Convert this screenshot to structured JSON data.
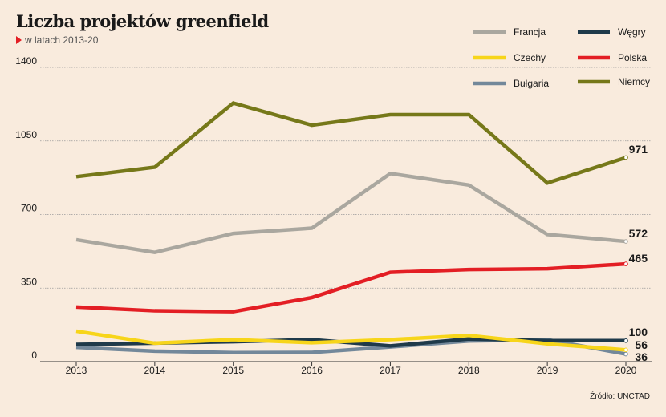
{
  "title": "Liczba projektów greenfield",
  "subtitle": "w latach 2013-20",
  "source": "Źródło: UNCTAD",
  "chart_data": {
    "type": "line",
    "x": [
      "2013",
      "2014",
      "2015",
      "2016",
      "2017",
      "2018",
      "2019",
      "2020"
    ],
    "ylim": [
      0,
      1400
    ],
    "yticks": [
      "0",
      "350",
      "700",
      "1050",
      "1400"
    ],
    "grid": true,
    "legend_position": "top-right",
    "series": [
      {
        "name": "Francja",
        "color": "#aaa79f",
        "values": [
          580,
          520,
          610,
          635,
          895,
          840,
          605,
          572
        ],
        "end_label": "572"
      },
      {
        "name": "Czechy",
        "color": "#f7d51a",
        "values": [
          145,
          88,
          105,
          90,
          105,
          125,
          85,
          56
        ],
        "end_label": "56"
      },
      {
        "name": "Bułgaria",
        "color": "#73889a",
        "values": [
          68,
          50,
          43,
          44,
          70,
          98,
          105,
          36
        ],
        "end_label": "36"
      },
      {
        "name": "Węgry",
        "color": "#1f3a4a",
        "values": [
          82,
          88,
          95,
          105,
          75,
          108,
          100,
          100
        ],
        "end_label": "100"
      },
      {
        "name": "Polska",
        "color": "#e31e24",
        "values": [
          260,
          242,
          238,
          305,
          425,
          438,
          442,
          465
        ],
        "end_label": "465"
      },
      {
        "name": "Niemcy",
        "color": "#767819",
        "values": [
          880,
          925,
          1230,
          1125,
          1175,
          1175,
          850,
          971
        ],
        "end_label": "971"
      }
    ]
  }
}
